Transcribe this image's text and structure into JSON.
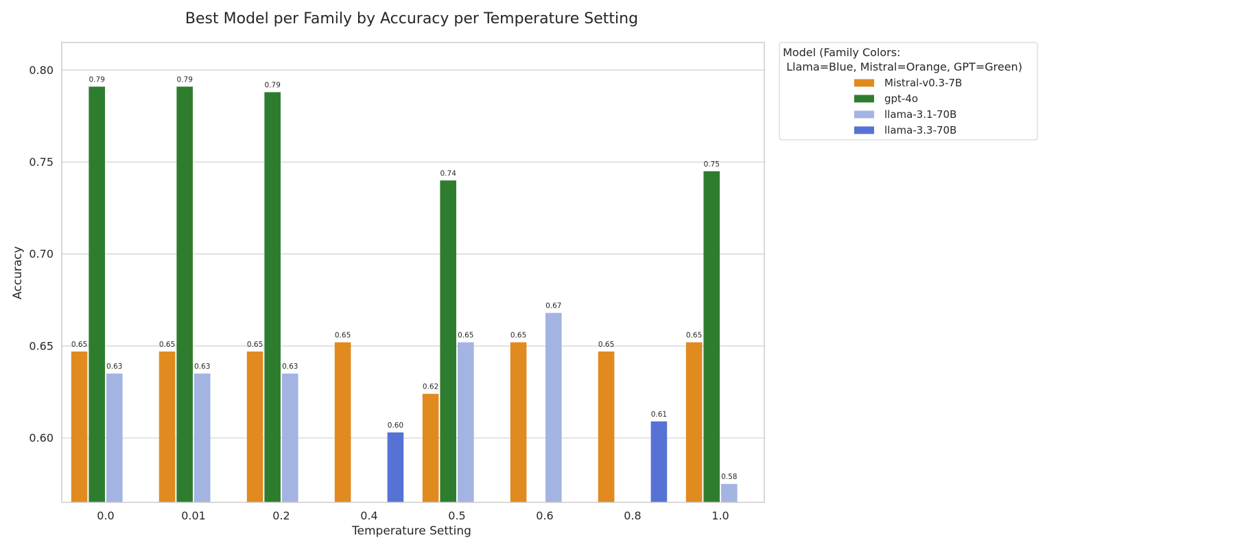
{
  "chart_data": {
    "type": "bar",
    "title": "Best Model per Family by Accuracy per Temperature Setting",
    "xlabel": "Temperature Setting",
    "ylabel": "Accuracy",
    "categories": [
      "0.0",
      "0.01",
      "0.2",
      "0.4",
      "0.5",
      "0.6",
      "0.8",
      "1.0"
    ],
    "ylim": [
      0.565,
      0.815
    ],
    "yticks": [
      "0.60",
      "0.65",
      "0.70",
      "0.75",
      "0.80"
    ],
    "grid": true,
    "legend": {
      "title": "Model (Family Colors:\n Llama=Blue, Mistral=Orange, GPT=Green)",
      "placement": "outside-right-top"
    },
    "series": [
      {
        "name": "Mistral-v0.3-7B",
        "color": "#e08a20",
        "values": [
          0.647,
          0.647,
          0.647,
          0.652,
          0.624,
          0.652,
          0.647,
          0.652
        ],
        "labels": [
          "0.65",
          "0.65",
          "0.65",
          "0.65",
          "0.62",
          "0.65",
          "0.65",
          "0.65"
        ]
      },
      {
        "name": "gpt-4o",
        "color": "#2e7d2e",
        "values": [
          0.791,
          0.791,
          0.788,
          null,
          0.74,
          null,
          null,
          0.745
        ],
        "labels": [
          "0.79",
          "0.79",
          "0.79",
          null,
          "0.74",
          null,
          null,
          "0.75"
        ]
      },
      {
        "name": "llama-3.1-70B",
        "color": "#a3b4e2",
        "values": [
          0.635,
          0.635,
          0.635,
          null,
          0.652,
          0.668,
          null,
          0.575
        ],
        "labels": [
          "0.63",
          "0.63",
          "0.63",
          null,
          "0.65",
          "0.67",
          null,
          "0.58"
        ]
      },
      {
        "name": "llama-3.3-70B",
        "color": "#5672d4",
        "values": [
          null,
          null,
          null,
          0.603,
          null,
          null,
          0.609,
          null
        ],
        "labels": [
          null,
          null,
          null,
          "0.60",
          null,
          null,
          "0.61",
          null
        ]
      }
    ]
  }
}
